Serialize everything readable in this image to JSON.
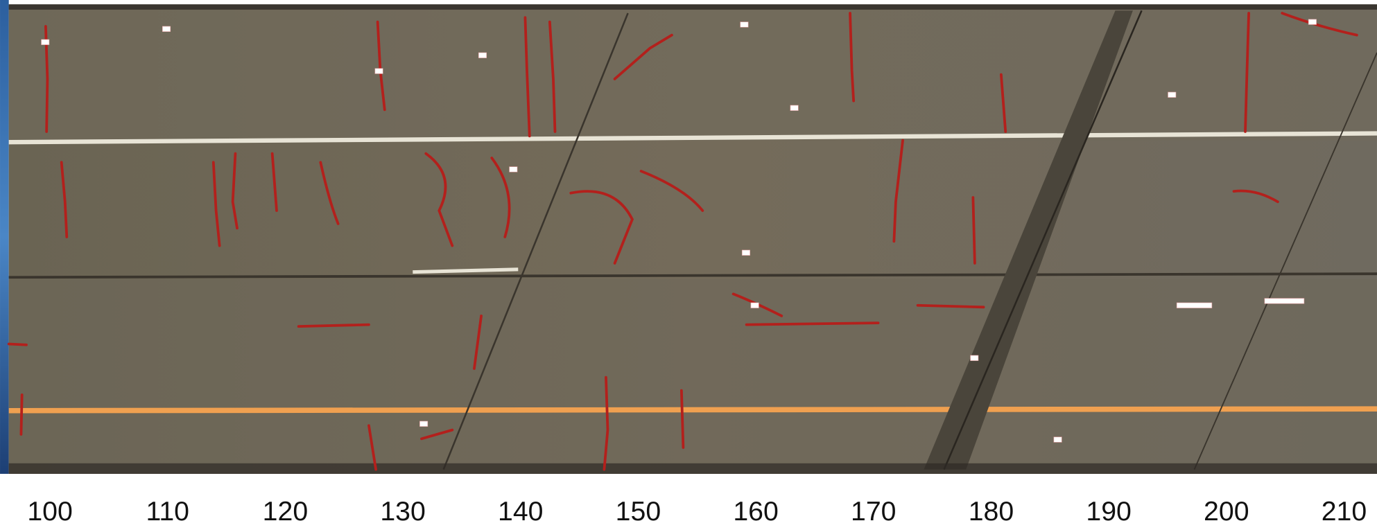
{
  "axis": {
    "xlim": [
      96.5,
      212.8
    ],
    "xticks": [
      100,
      110,
      120,
      130,
      140,
      150,
      160,
      170,
      180,
      190,
      200,
      210
    ]
  }
}
